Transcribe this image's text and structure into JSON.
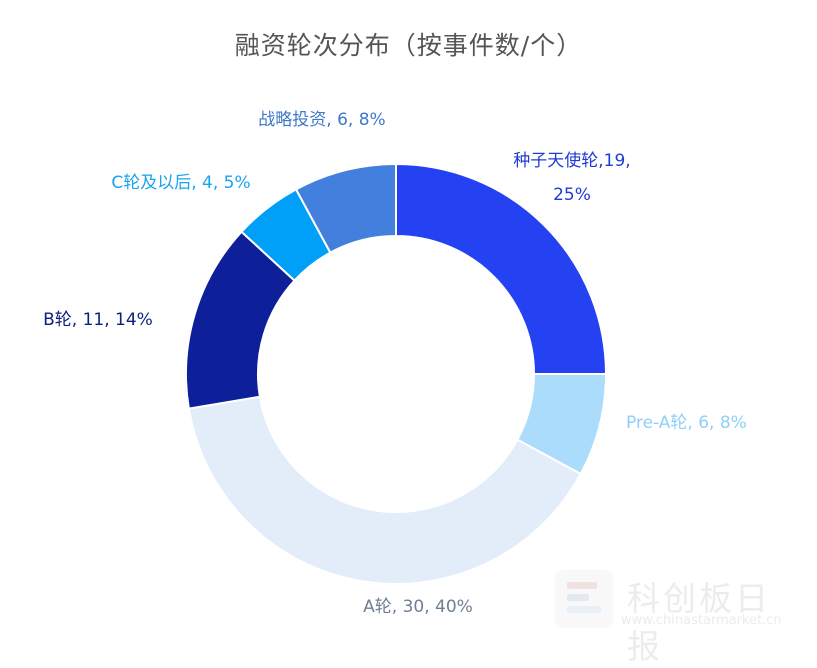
{
  "chart_data": {
    "type": "pie",
    "title": "融资轮次分布（按事件数/个）",
    "donut": true,
    "slices": [
      {
        "name": "种子天使轮",
        "value": 19,
        "percent": "25%",
        "label_line1": "种子天使轮,19,",
        "label_line2": "25%",
        "color": "#2442f2",
        "label_color": "#1f3bd6"
      },
      {
        "name": "Pre-A轮",
        "value": 6,
        "percent": "8%",
        "label": "Pre-A轮, 6, 8%",
        "color": "#abdcfc",
        "label_color": "#8fd0f6"
      },
      {
        "name": "A轮",
        "value": 30,
        "percent": "40%",
        "label": "A轮, 30, 40%",
        "color": "#e3edf9",
        "label_color": "#6f7f93"
      },
      {
        "name": "B轮",
        "value": 11,
        "percent": "14%",
        "label": "B轮, 11, 14%",
        "color": "#0d1f99",
        "label_color": "#0d1f80"
      },
      {
        "name": "C轮及以后",
        "value": 4,
        "percent": "5%",
        "label": "C轮及以后, 4, 5%",
        "color": "#00a0f8",
        "label_color": "#1aa3f0"
      },
      {
        "name": "战略投资",
        "value": 6,
        "percent": "8%",
        "label": "战略投资, 6, 8%",
        "color": "#4380de",
        "label_color": "#3f78c9"
      }
    ]
  },
  "watermark": {
    "text": "科创板日报",
    "url": "www.chinastarmarket.cn"
  }
}
